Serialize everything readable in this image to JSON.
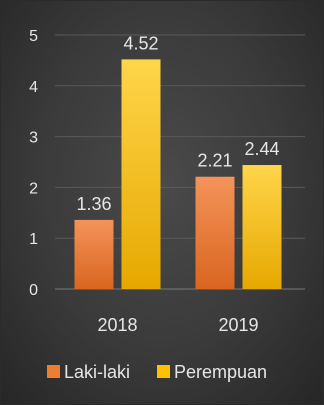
{
  "chart_data": {
    "type": "bar",
    "categories": [
      "2018",
      "2019"
    ],
    "series": [
      {
        "name": "Laki-laki",
        "values": [
          1.36,
          2.21
        ],
        "color": "#ED7D31"
      },
      {
        "name": "Perempuan",
        "values": [
          4.52,
          2.44
        ],
        "color": "#FFC000"
      }
    ],
    "ylim": [
      0,
      5
    ],
    "yticks": [
      "0",
      "1",
      "2",
      "3",
      "4",
      "5"
    ],
    "data_labels": [
      [
        "1.36",
        "2.21"
      ],
      [
        "4.52",
        "2.44"
      ]
    ],
    "title": "",
    "xlabel": "",
    "ylabel": "",
    "grid": true,
    "legend_position": "bottom"
  }
}
